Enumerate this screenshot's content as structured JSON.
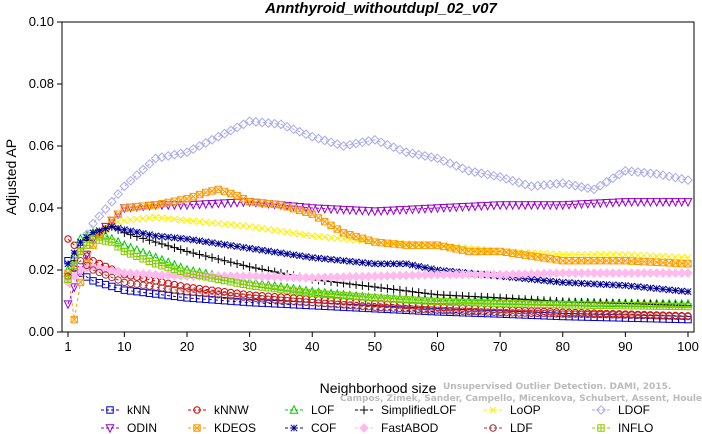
{
  "chart_data": {
    "type": "line",
    "title": "Annthyroid_withoutdupl_02_v07",
    "xlabel": "Neighborhood size",
    "ylabel": "Adjusted AP",
    "xlim": [
      1,
      100
    ],
    "ylim": [
      0,
      0.1
    ],
    "xticks": [
      "1",
      "10",
      "20",
      "30",
      "40",
      "50",
      "60",
      "70",
      "80",
      "90",
      "100"
    ],
    "yticks": [
      "0.00",
      "0.02",
      "0.04",
      "0.06",
      "0.08",
      "0.10"
    ],
    "grid": false,
    "legend_position": "bottom",
    "watermark": [
      "Unsupervised Outlier Detection. DAMI, 2015.",
      "Campos, Zimek, Sander, Campello, Micenkova, Schubert, Assent, Houle"
    ],
    "series": [
      {
        "name": "kNN",
        "color": "#0000cc",
        "marker": "square",
        "points": [
          [
            1,
            0.023
          ],
          [
            3,
            0.019
          ],
          [
            5,
            0.0165
          ],
          [
            10,
            0.0135
          ],
          [
            20,
            0.011
          ],
          [
            30,
            0.0095
          ],
          [
            40,
            0.0085
          ],
          [
            50,
            0.0075
          ],
          [
            60,
            0.0065
          ],
          [
            70,
            0.0058
          ],
          [
            80,
            0.005
          ],
          [
            90,
            0.0045
          ],
          [
            100,
            0.004
          ]
        ]
      },
      {
        "name": "kNNW",
        "color": "#dd0000",
        "marker": "circle",
        "points": [
          [
            1,
            0.03
          ],
          [
            3,
            0.026
          ],
          [
            5,
            0.023
          ],
          [
            10,
            0.0185
          ],
          [
            20,
            0.0145
          ],
          [
            30,
            0.012
          ],
          [
            40,
            0.0105
          ],
          [
            50,
            0.0092
          ],
          [
            60,
            0.008
          ],
          [
            70,
            0.0072
          ],
          [
            80,
            0.0064
          ],
          [
            90,
            0.0058
          ],
          [
            100,
            0.0052
          ]
        ]
      },
      {
        "name": "LOF",
        "color": "#00cc00",
        "marker": "triangle-up",
        "points": [
          [
            1,
            0.02
          ],
          [
            3,
            0.03
          ],
          [
            5,
            0.032
          ],
          [
            7,
            0.031
          ],
          [
            10,
            0.028
          ],
          [
            15,
            0.024
          ],
          [
            20,
            0.02
          ],
          [
            30,
            0.016
          ],
          [
            40,
            0.013
          ],
          [
            50,
            0.011
          ],
          [
            60,
            0.0102
          ],
          [
            70,
            0.01
          ],
          [
            80,
            0.0095
          ],
          [
            90,
            0.0092
          ],
          [
            100,
            0.009
          ]
        ]
      },
      {
        "name": "SimplifiedLOF",
        "color": "#000000",
        "marker": "plus",
        "points": [
          [
            1,
            0.018
          ],
          [
            3,
            0.028
          ],
          [
            5,
            0.031
          ],
          [
            8,
            0.034
          ],
          [
            10,
            0.032
          ],
          [
            15,
            0.029
          ],
          [
            20,
            0.026
          ],
          [
            30,
            0.021
          ],
          [
            40,
            0.017
          ],
          [
            50,
            0.0145
          ],
          [
            60,
            0.012
          ],
          [
            70,
            0.011
          ],
          [
            80,
            0.0098
          ],
          [
            90,
            0.0092
          ],
          [
            100,
            0.0085
          ]
        ]
      },
      {
        "name": "LoOP",
        "color": "#ffee00",
        "marker": "x",
        "points": [
          [
            1,
            0.017
          ],
          [
            3,
            0.026
          ],
          [
            5,
            0.031
          ],
          [
            8,
            0.035
          ],
          [
            10,
            0.036
          ],
          [
            15,
            0.037
          ],
          [
            20,
            0.036
          ],
          [
            30,
            0.034
          ],
          [
            40,
            0.031
          ],
          [
            50,
            0.029
          ],
          [
            60,
            0.028
          ],
          [
            70,
            0.026
          ],
          [
            80,
            0.025
          ],
          [
            90,
            0.025
          ],
          [
            100,
            0.024
          ]
        ]
      },
      {
        "name": "LDOF",
        "color": "#aaaaee",
        "marker": "diamond",
        "points": [
          [
            1,
            0.018
          ],
          [
            3,
            0.028
          ],
          [
            5,
            0.035
          ],
          [
            8,
            0.042
          ],
          [
            10,
            0.047
          ],
          [
            15,
            0.056
          ],
          [
            20,
            0.058
          ],
          [
            25,
            0.063
          ],
          [
            30,
            0.068
          ],
          [
            35,
            0.067
          ],
          [
            40,
            0.063
          ],
          [
            45,
            0.06
          ],
          [
            50,
            0.062
          ],
          [
            55,
            0.058
          ],
          [
            60,
            0.056
          ],
          [
            65,
            0.052
          ],
          [
            70,
            0.05
          ],
          [
            75,
            0.047
          ],
          [
            80,
            0.048
          ],
          [
            85,
            0.046
          ],
          [
            90,
            0.052
          ],
          [
            95,
            0.051
          ],
          [
            100,
            0.049
          ]
        ]
      },
      {
        "name": "ODIN",
        "color": "#9900cc",
        "marker": "triangle-down",
        "points": [
          [
            1,
            0.009
          ],
          [
            3,
            0.02
          ],
          [
            5,
            0.03
          ],
          [
            8,
            0.036
          ],
          [
            10,
            0.04
          ],
          [
            15,
            0.041
          ],
          [
            20,
            0.041
          ],
          [
            30,
            0.042
          ],
          [
            40,
            0.04
          ],
          [
            50,
            0.039
          ],
          [
            60,
            0.04
          ],
          [
            70,
            0.041
          ],
          [
            80,
            0.041
          ],
          [
            90,
            0.042
          ],
          [
            100,
            0.042
          ]
        ]
      },
      {
        "name": "KDEOS",
        "color": "#ff9900",
        "marker": "square-x",
        "points": [
          [
            1,
            0.019
          ],
          [
            2,
            0.004
          ],
          [
            3,
            0.016
          ],
          [
            5,
            0.028
          ],
          [
            8,
            0.036
          ],
          [
            10,
            0.04
          ],
          [
            15,
            0.041
          ],
          [
            20,
            0.043
          ],
          [
            23,
            0.045
          ],
          [
            25,
            0.046
          ],
          [
            28,
            0.044
          ],
          [
            30,
            0.042
          ],
          [
            35,
            0.041
          ],
          [
            40,
            0.038
          ],
          [
            45,
            0.032
          ],
          [
            50,
            0.029
          ],
          [
            55,
            0.028
          ],
          [
            60,
            0.028
          ],
          [
            65,
            0.026
          ],
          [
            70,
            0.026
          ],
          [
            80,
            0.023
          ],
          [
            90,
            0.023
          ],
          [
            100,
            0.022
          ]
        ]
      },
      {
        "name": "COF",
        "color": "#000099",
        "marker": "asterisk",
        "points": [
          [
            1,
            0.022
          ],
          [
            3,
            0.029
          ],
          [
            5,
            0.032
          ],
          [
            8,
            0.034
          ],
          [
            10,
            0.033
          ],
          [
            15,
            0.031
          ],
          [
            20,
            0.03
          ],
          [
            30,
            0.027
          ],
          [
            40,
            0.024
          ],
          [
            50,
            0.022
          ],
          [
            55,
            0.022
          ],
          [
            60,
            0.02
          ],
          [
            70,
            0.018
          ],
          [
            80,
            0.016
          ],
          [
            90,
            0.015
          ],
          [
            100,
            0.013
          ]
        ]
      },
      {
        "name": "FastABOD",
        "color": "#ffbbee",
        "marker": "diamond-filled",
        "points": [
          [
            1,
            0.016
          ],
          [
            3,
            0.02
          ],
          [
            5,
            0.021
          ],
          [
            10,
            0.019
          ],
          [
            20,
            0.018
          ],
          [
            30,
            0.018
          ],
          [
            40,
            0.0175
          ],
          [
            50,
            0.018
          ],
          [
            60,
            0.0185
          ],
          [
            70,
            0.0185
          ],
          [
            80,
            0.019
          ],
          [
            90,
            0.019
          ],
          [
            100,
            0.019
          ]
        ]
      },
      {
        "name": "LDF",
        "color": "#aa3333",
        "marker": "circle-dot",
        "points": [
          [
            1,
            0.018
          ],
          [
            3,
            0.023
          ],
          [
            5,
            0.02
          ],
          [
            10,
            0.016
          ],
          [
            20,
            0.013
          ],
          [
            30,
            0.011
          ],
          [
            40,
            0.0095
          ],
          [
            50,
            0.008
          ],
          [
            60,
            0.007
          ],
          [
            70,
            0.0063
          ],
          [
            80,
            0.0058
          ],
          [
            90,
            0.0055
          ],
          [
            100,
            0.005
          ]
        ]
      },
      {
        "name": "INFLO",
        "color": "#88cc00",
        "marker": "square-cross",
        "points": [
          [
            1,
            0.017
          ],
          [
            3,
            0.026
          ],
          [
            5,
            0.03
          ],
          [
            8,
            0.029
          ],
          [
            10,
            0.026
          ],
          [
            15,
            0.022
          ],
          [
            20,
            0.019
          ],
          [
            30,
            0.015
          ],
          [
            40,
            0.0125
          ],
          [
            50,
            0.011
          ],
          [
            60,
            0.0098
          ],
          [
            70,
            0.0092
          ],
          [
            80,
            0.0088
          ],
          [
            90,
            0.0085
          ],
          [
            100,
            0.0082
          ]
        ]
      }
    ]
  }
}
